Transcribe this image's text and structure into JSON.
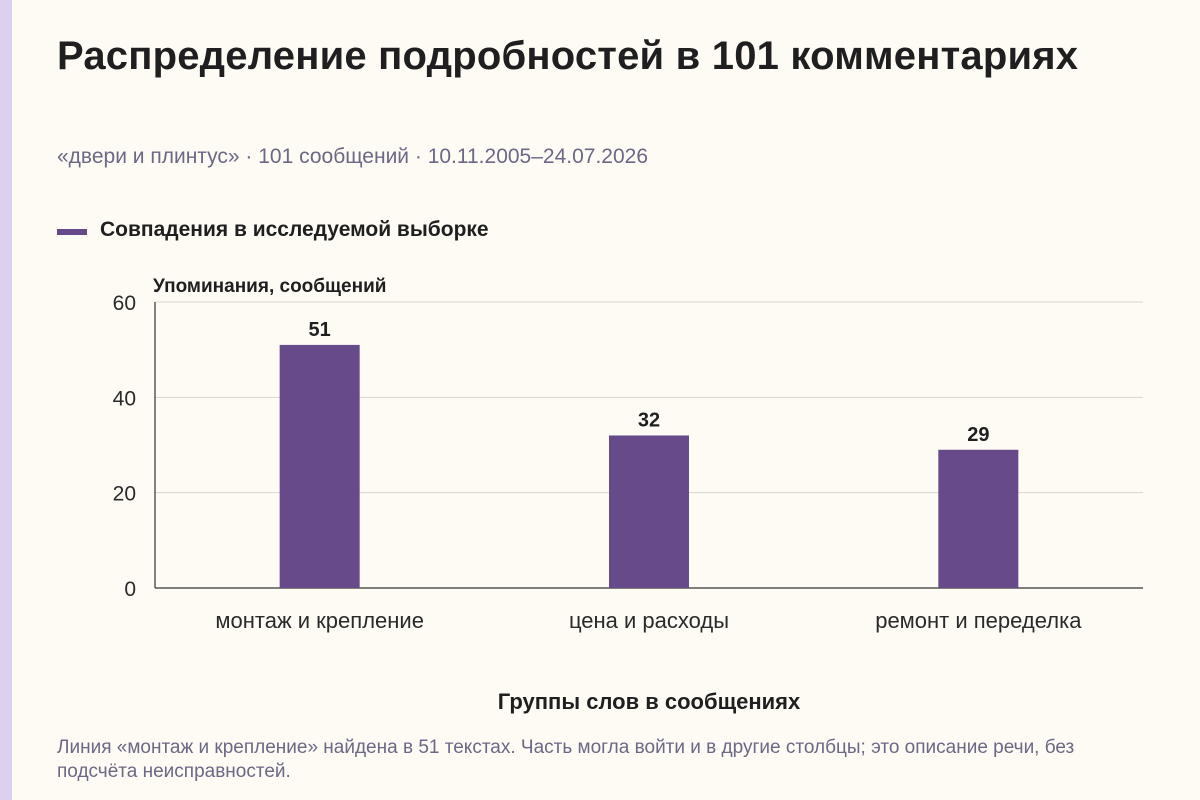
{
  "page": {
    "title": "Распределение подробностей в 101 комментариях",
    "subtitle": "«двери и плинтус» · 101 сообщений · 10.11.2005–24.07.2026",
    "footnote": "Линия «монтаж и крепление» найдена в 51 текстах. Часть могла войти и в другие столбцы; это описание речи, без подсчёта неисправностей."
  },
  "colors": {
    "bar": "#664a8a",
    "grid": "#d9d6cc",
    "axis": "#333333",
    "background": "#fdfbf4",
    "accent_strip": "#dcd0ee"
  },
  "chart_data": {
    "type": "bar",
    "title": "Распределение подробностей в 101 комментариях",
    "xlabel": "Группы слов в сообщениях",
    "ylabel": "Упоминания, сообщений",
    "categories": [
      "монтаж и крепление",
      "цена и расходы",
      "ремонт и переделка"
    ],
    "series": [
      {
        "name": "Совпадения в исследуемой выборке",
        "values": [
          51,
          32,
          29
        ]
      }
    ],
    "ylim": [
      0,
      60
    ],
    "yticks": [
      0,
      20,
      40,
      60
    ],
    "grid": true,
    "legend_position": "top-left",
    "data_labels": true
  }
}
